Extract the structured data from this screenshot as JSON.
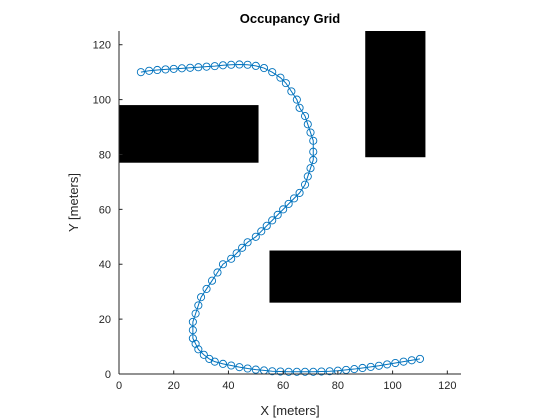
{
  "chart_data": {
    "type": "scatter",
    "title": "Occupancy Grid",
    "xlabel": "X [meters]",
    "ylabel": "Y [meters]",
    "xlim": [
      0,
      125
    ],
    "ylim": [
      0,
      125
    ],
    "xticks": [
      "0",
      "20",
      "40",
      "60",
      "80",
      "100",
      "120"
    ],
    "yticks": [
      "0",
      "20",
      "40",
      "60",
      "80",
      "100",
      "120"
    ],
    "grid": false,
    "obstacles": [
      {
        "x": [
          0,
          51
        ],
        "y": [
          77,
          98
        ]
      },
      {
        "x": [
          90,
          112
        ],
        "y": [
          79,
          125
        ]
      },
      {
        "x": [
          55,
          125
        ],
        "y": [
          26,
          45
        ]
      }
    ],
    "series": [
      {
        "style": "line-with-circle-markers",
        "x": [
          8,
          11,
          14,
          17,
          20,
          23,
          26,
          29,
          32,
          35,
          38,
          41,
          44,
          47,
          50,
          53,
          56,
          59,
          61,
          63,
          65,
          66,
          68,
          69,
          70,
          71,
          71,
          71,
          70,
          69,
          68,
          66,
          64,
          62,
          60,
          58,
          56,
          54,
          52,
          50,
          47,
          45,
          43,
          41,
          38,
          36,
          34,
          32,
          30,
          29,
          28,
          27,
          27,
          27,
          28,
          29,
          31,
          33,
          35,
          38,
          41,
          44,
          47,
          50,
          53,
          56,
          59,
          62,
          65,
          68,
          71,
          74,
          77,
          80,
          83,
          86,
          89,
          92,
          95,
          98,
          101,
          104,
          107,
          110
        ],
        "y": [
          110,
          110.5,
          110.8,
          111,
          111.2,
          111.4,
          111.6,
          111.8,
          112,
          112.2,
          112.5,
          112.7,
          112.8,
          112.7,
          112.3,
          111.5,
          110,
          108,
          106,
          103,
          100,
          97,
          94,
          91,
          88,
          85,
          81,
          78,
          75,
          72,
          69,
          66,
          64,
          62,
          60,
          58,
          56,
          54,
          52,
          50,
          48,
          46,
          44,
          42,
          40,
          37,
          34,
          31,
          28,
          25,
          22,
          19,
          16,
          13,
          11,
          9,
          7,
          5.5,
          4.5,
          3.7,
          3.1,
          2.5,
          2,
          1.6,
          1.3,
          1,
          0.9,
          0.8,
          0.8,
          0.8,
          0.8,
          0.9,
          1,
          1.2,
          1.5,
          1.8,
          2.2,
          2.6,
          3,
          3.5,
          4,
          4.5,
          5,
          5.5
        ],
        "color": "#0072bd"
      }
    ]
  }
}
